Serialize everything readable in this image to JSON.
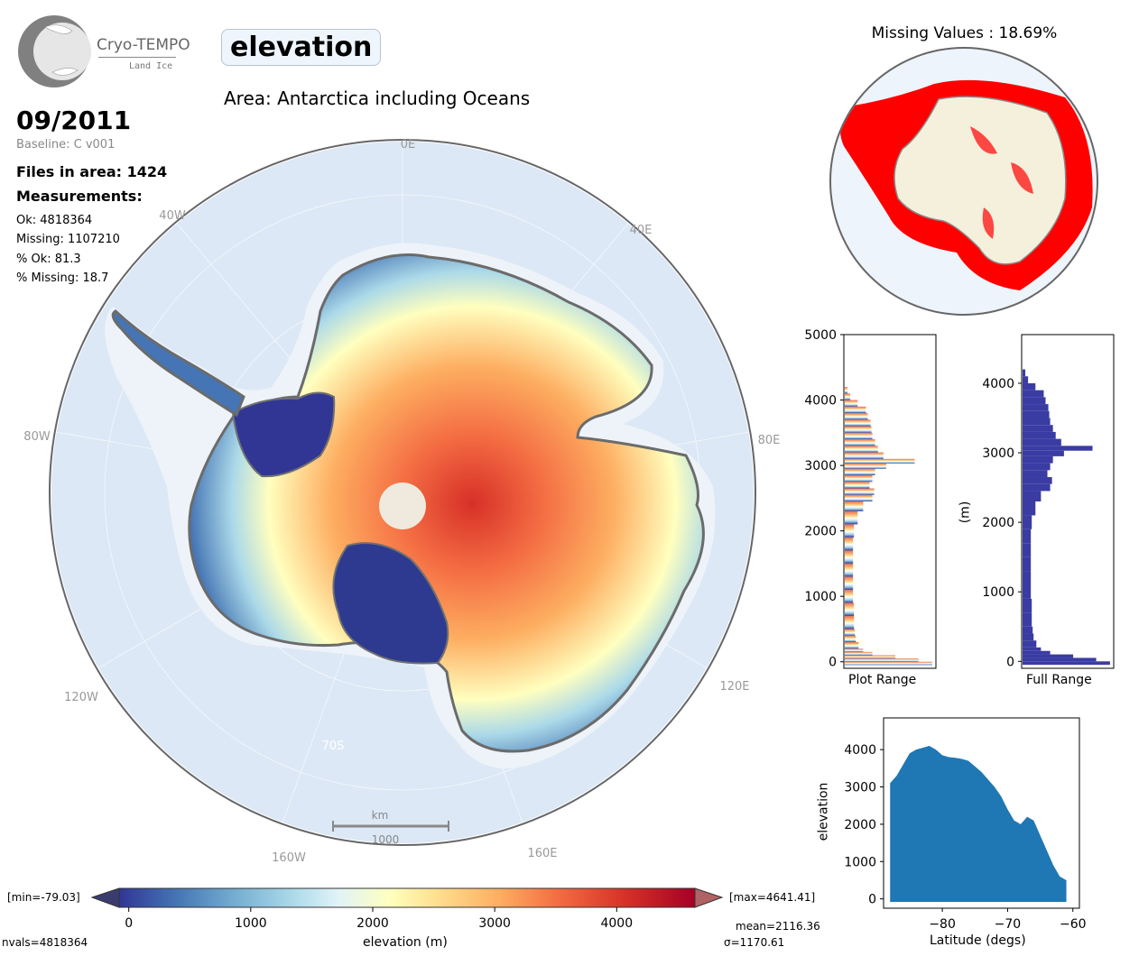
{
  "header": {
    "logo_name": "Cryo-TEMPO",
    "logo_sub": "Land Ice",
    "title": "elevation",
    "area": "Area: Antarctica including Oceans",
    "date": "09/2011",
    "baseline": "Baseline: C v001",
    "files": "Files in area: 1424",
    "measurements_title": "Measurements:",
    "stats": [
      "Ok: 4818364",
      "Missing: 1107210",
      "% Ok: 81.3",
      "% Missing: 18.7"
    ]
  },
  "map": {
    "lon_labels": [
      "0E",
      "40E",
      "80E",
      "120E",
      "160E",
      "160W",
      "120W",
      "80W",
      "40W"
    ],
    "lat_label": "70S",
    "scale_unit": "km",
    "scale_value": "1000"
  },
  "colorbar": {
    "min_label": "[min=-79.03]",
    "max_label": "[max=4641.41]",
    "ticks": [
      "0",
      "1000",
      "2000",
      "3000",
      "4000"
    ],
    "xlabel": "elevation (m)",
    "nvals": "nvals=4818364",
    "mean": "mean=2116.36",
    "sigma": "σ=1170.61"
  },
  "missing": {
    "title": "Missing Values : 18.69%"
  },
  "colors": {
    "cmap": [
      "#313695",
      "#4575b4",
      "#74add1",
      "#abd9e9",
      "#e0f3f8",
      "#ffffbf",
      "#fee090",
      "#fdae61",
      "#f46d43",
      "#d73027",
      "#a50026"
    ],
    "ocean": "#dce8f5",
    "missing_red": "#ff0000",
    "land_beige": "#f5f0dc",
    "hist_full": "#3a3ca3",
    "scatter": "#1f77b4"
  },
  "chart_data": [
    {
      "type": "histogram",
      "xlabel": "Plot Range",
      "orientation": "horizontal",
      "ylim": [
        -100,
        5000
      ],
      "y_ticks": [
        "0",
        "1000",
        "2000",
        "3000",
        "4000",
        "5000"
      ],
      "bins": [
        [
          -50,
          0.95
        ],
        [
          0,
          0.8
        ],
        [
          50,
          0.55
        ],
        [
          100,
          0.3
        ],
        [
          150,
          0.2
        ],
        [
          200,
          0.15
        ],
        [
          300,
          0.12
        ],
        [
          400,
          0.11
        ],
        [
          500,
          0.1
        ],
        [
          700,
          0.1
        ],
        [
          900,
          0.09
        ],
        [
          1100,
          0.09
        ],
        [
          1300,
          0.09
        ],
        [
          1500,
          0.09
        ],
        [
          1700,
          0.09
        ],
        [
          1900,
          0.1
        ],
        [
          2100,
          0.14
        ],
        [
          2300,
          0.2
        ],
        [
          2450,
          0.3
        ],
        [
          2550,
          0.32
        ],
        [
          2650,
          0.27
        ],
        [
          2750,
          0.3
        ],
        [
          2850,
          0.33
        ],
        [
          2950,
          0.45
        ],
        [
          3030,
          0.76
        ],
        [
          3100,
          0.42
        ],
        [
          3200,
          0.36
        ],
        [
          3300,
          0.33
        ],
        [
          3400,
          0.3
        ],
        [
          3500,
          0.29
        ],
        [
          3600,
          0.28
        ],
        [
          3700,
          0.25
        ],
        [
          3800,
          0.23
        ],
        [
          3900,
          0.14
        ],
        [
          4000,
          0.06
        ],
        [
          4100,
          0.03
        ]
      ]
    },
    {
      "type": "histogram",
      "xlabel": "Full Range",
      "ylabel": "(m)",
      "orientation": "horizontal",
      "ylim": [
        -100,
        4700
      ],
      "y_ticks": [
        "0",
        "1000",
        "2000",
        "3000",
        "4000"
      ],
      "bins": [
        [
          -50,
          0.95
        ],
        [
          0,
          0.8
        ],
        [
          50,
          0.55
        ],
        [
          100,
          0.3
        ],
        [
          150,
          0.2
        ],
        [
          200,
          0.15
        ],
        [
          300,
          0.12
        ],
        [
          400,
          0.11
        ],
        [
          500,
          0.1
        ],
        [
          700,
          0.1
        ],
        [
          900,
          0.09
        ],
        [
          1100,
          0.09
        ],
        [
          1300,
          0.09
        ],
        [
          1500,
          0.09
        ],
        [
          1700,
          0.09
        ],
        [
          1900,
          0.1
        ],
        [
          2100,
          0.14
        ],
        [
          2300,
          0.2
        ],
        [
          2450,
          0.3
        ],
        [
          2550,
          0.32
        ],
        [
          2650,
          0.27
        ],
        [
          2750,
          0.3
        ],
        [
          2850,
          0.33
        ],
        [
          2950,
          0.45
        ],
        [
          3030,
          0.76
        ],
        [
          3100,
          0.42
        ],
        [
          3200,
          0.36
        ],
        [
          3300,
          0.33
        ],
        [
          3400,
          0.3
        ],
        [
          3500,
          0.29
        ],
        [
          3600,
          0.28
        ],
        [
          3700,
          0.25
        ],
        [
          3800,
          0.23
        ],
        [
          3900,
          0.14
        ],
        [
          4000,
          0.06
        ],
        [
          4100,
          0.03
        ]
      ]
    },
    {
      "type": "scatter",
      "xlabel": "Latitude (degs)",
      "ylabel": "elevation",
      "xlim": [
        -89,
        -59
      ],
      "ylim": [
        -250,
        4850
      ],
      "x_ticks": [
        -80,
        -70,
        -60
      ],
      "y_ticks": [
        0,
        1000,
        2000,
        3000,
        4000
      ],
      "upper_envelope": [
        [
          -88,
          3100
        ],
        [
          -87,
          3300
        ],
        [
          -86,
          3600
        ],
        [
          -85,
          3900
        ],
        [
          -84,
          4000
        ],
        [
          -83,
          4050
        ],
        [
          -82,
          4100
        ],
        [
          -81,
          4000
        ],
        [
          -80,
          3850
        ],
        [
          -79,
          3800
        ],
        [
          -78,
          3780
        ],
        [
          -77,
          3750
        ],
        [
          -76,
          3700
        ],
        [
          -75,
          3550
        ],
        [
          -74,
          3400
        ],
        [
          -73,
          3200
        ],
        [
          -72,
          3000
        ],
        [
          -71,
          2750
        ],
        [
          -70,
          2400
        ],
        [
          -69,
          2100
        ],
        [
          -68,
          2000
        ],
        [
          -67,
          2200
        ],
        [
          -66,
          2100
        ],
        [
          -65,
          1700
        ],
        [
          -64,
          1300
        ],
        [
          -63,
          900
        ],
        [
          -62,
          600
        ],
        [
          -61,
          500
        ]
      ],
      "lower_bound": -80
    }
  ]
}
